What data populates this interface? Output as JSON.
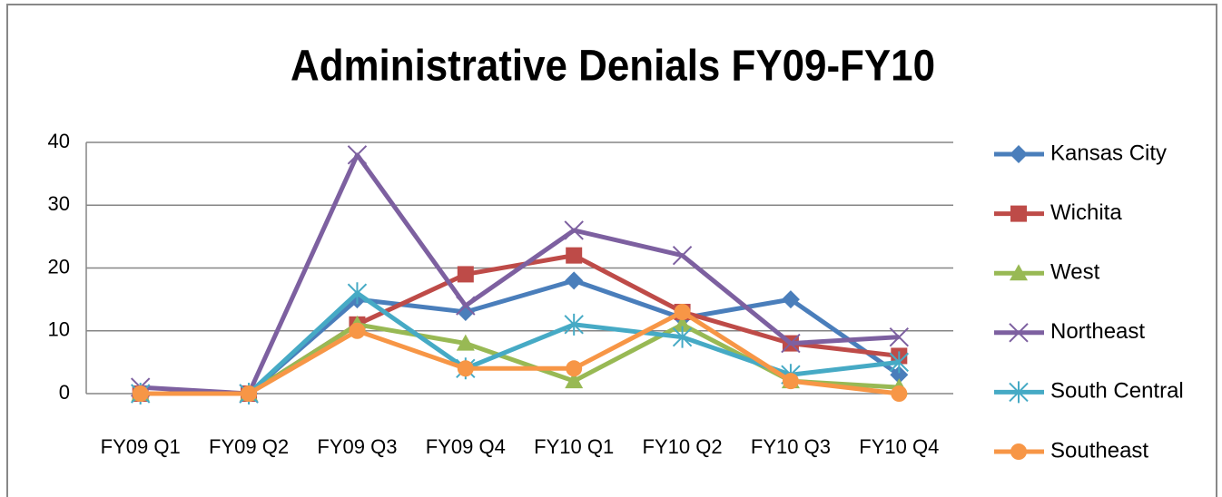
{
  "chart_data": {
    "type": "line",
    "title": "Administrative Denials FY09-FY10",
    "categories": [
      "FY09 Q1",
      "FY09 Q2",
      "FY09 Q3",
      "FY09 Q4",
      "FY10 Q1",
      "FY10 Q2",
      "FY10 Q3",
      "FY10 Q4"
    ],
    "series": [
      {
        "name": "Kansas City",
        "color": "#4a7ebb",
        "marker": "diamond",
        "values": [
          0,
          0,
          15,
          13,
          18,
          12,
          15,
          3
        ]
      },
      {
        "name": "Wichita",
        "color": "#be4b48",
        "marker": "square",
        "values": [
          0,
          0,
          11,
          19,
          22,
          13,
          8,
          6
        ]
      },
      {
        "name": "West",
        "color": "#98b954",
        "marker": "triangle",
        "values": [
          0,
          0,
          11,
          8,
          2,
          11,
          2,
          1
        ]
      },
      {
        "name": "Northeast",
        "color": "#7d60a0",
        "marker": "x",
        "values": [
          1,
          0,
          38,
          14,
          26,
          22,
          8,
          9
        ]
      },
      {
        "name": "South Central",
        "color": "#46aac5",
        "marker": "star",
        "values": [
          0,
          0,
          16,
          4,
          11,
          9,
          3,
          5
        ]
      },
      {
        "name": "Southeast",
        "color": "#f79646",
        "marker": "circle",
        "values": [
          0,
          0,
          10,
          4,
          4,
          13,
          2,
          0
        ]
      }
    ],
    "ylim": [
      0,
      40
    ],
    "yticks": [
      0,
      10,
      20,
      30,
      40
    ],
    "grid": true,
    "legend": "right"
  }
}
